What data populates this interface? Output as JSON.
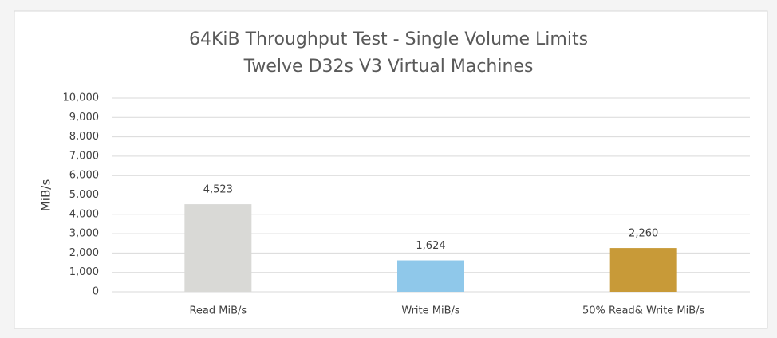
{
  "chart_data": {
    "type": "bar",
    "title": "64KiB Throughput Test - Single Volume Limits",
    "subtitle": "Twelve D32s V3 Virtual Machines",
    "y_label": "MiB/s",
    "categories": [
      "Read MiB/s",
      "Write MiB/s",
      "50% Read& Write MiB/s"
    ],
    "values": [
      4523,
      1624,
      2260
    ],
    "value_labels": [
      "4,523",
      "1,624",
      "2,260"
    ],
    "colors": [
      "#d9d9d6",
      "#8fc8ea",
      "#c89a38"
    ],
    "ylim": [
      0,
      10000
    ],
    "yticks": [
      0,
      {
        "value": 1000,
        "label": "1,000"
      },
      {
        "value": 2000,
        "label": "2,000"
      },
      {
        "value": 3000,
        "label": "3,000"
      },
      {
        "value": 4000,
        "label": "4,000"
      },
      {
        "value": 5000,
        "label": "5,000"
      },
      {
        "value": 6000,
        "label": "6,000"
      },
      {
        "value": 7000,
        "label": "7,000"
      },
      {
        "value": 8000,
        "label": "8,000"
      },
      {
        "value": 9000,
        "label": "9,000"
      },
      {
        "value": 10000,
        "label": "10,000"
      }
    ],
    "grid": true
  }
}
